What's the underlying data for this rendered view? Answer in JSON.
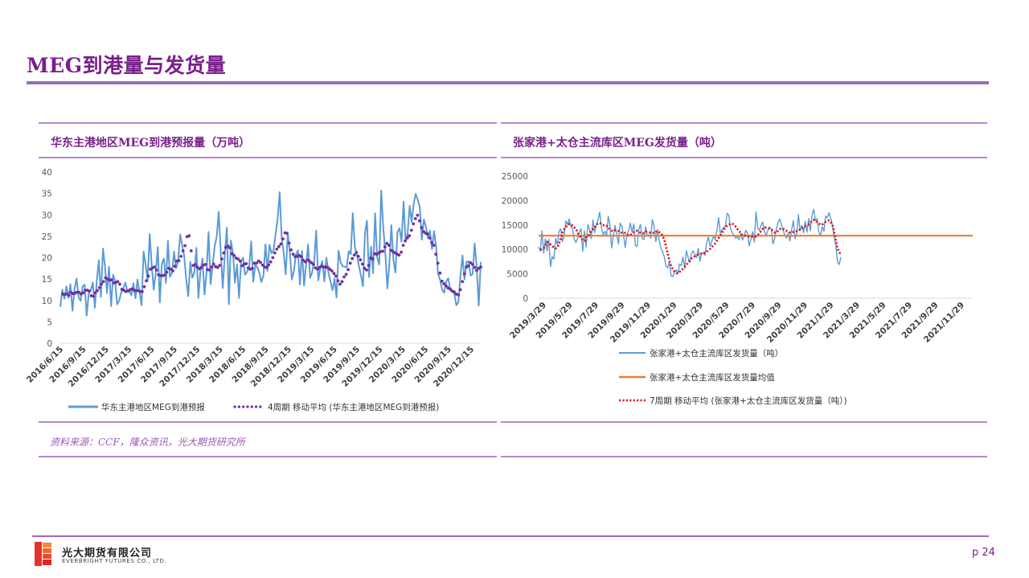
{
  "page": {
    "title": "MEG到港量与发货量",
    "source": "资料来源：CCF，隆众资讯，光大期货研究所",
    "page_number": "p 24",
    "company_cn": "光大期货有限公司",
    "company_en": "EVERBRIGHT FUTURES CO., LTD."
  },
  "colors": {
    "accent": "#7a1f8c",
    "rule": "#9b6ac0",
    "series_blue": "#5b9bd5",
    "series_purple": "#7030a0",
    "series_orange": "#ed7d31",
    "series_red": "#e0141e"
  },
  "chart_data": [
    {
      "type": "line",
      "title": "华东主港地区MEG到港预报量（万吨）",
      "ylim": [
        0,
        40
      ],
      "yticks": [
        "0",
        "5",
        "10",
        "15",
        "20",
        "25",
        "30",
        "35",
        "40"
      ],
      "xticks": [
        "2016/6/15",
        "2016/9/15",
        "2016/12/15",
        "2017/3/15",
        "2017/6/15",
        "2017/9/15",
        "2017/12/15",
        "2018/3/15",
        "2018/6/15",
        "2018/9/15",
        "2018/12/15",
        "2019/3/15",
        "2019/6/15",
        "2019/9/15",
        "2019/12/15",
        "2020/3/15",
        "2020/6/15",
        "2020/9/15",
        "2020/12/15"
      ],
      "series": [
        {
          "name": "华东主港地区MEG到港预报",
          "values": [
            8.5,
            12.5,
            10.4,
            13.3,
            10.6,
            13.8,
            7.6,
            12.7,
            15.1,
            10.8,
            9.9,
            13.3,
            13.7,
            6.5,
            11.7,
            12.3,
            14.2,
            8.3,
            14.9,
            19.4,
            10.8,
            22.1,
            18.0,
            11.7,
            17.9,
            8.7,
            16.0,
            14.6,
            9.1,
            10.0,
            11.9,
            12.8,
            14.2,
            12.2,
            12.2,
            11.2,
            14.0,
            10.5,
            14.9,
            12.0,
            8.9,
            21.4,
            18.5,
            14.5,
            25.5,
            18.2,
            12.5,
            16.4,
            22.5,
            9.5,
            18.6,
            19.8,
            14.1,
            23.9,
            15.5,
            16.5,
            21.4,
            17.5,
            19.2,
            25.4,
            22.9,
            20.4,
            15.0,
            11.0,
            19.0,
            15.3,
            16.5,
            22.3,
            10.6,
            16.7,
            19.8,
            11.4,
            16.5,
            26.0,
            13.8,
            18.2,
            22.6,
            24.8,
            30.7,
            21.4,
            12.9,
            20.9,
            27.0,
            9.1,
            24.0,
            21.0,
            14.1,
            18.4,
            10.6,
            19.1,
            20.0,
            16.0,
            16.7,
            17.9,
            23.8,
            14.4,
            18.3,
            17.7,
            16.5,
            14.3,
            15.8,
            23.1,
            16.9,
            23.0,
            21.0,
            21.8,
            25.5,
            29.0,
            35.3,
            24.5,
            21.2,
            16.1,
            25.7,
            21.3,
            14.9,
            16.9,
            20.7,
            21.7,
            13.7,
            21.6,
            13.5,
            18.3,
            23.1,
            15.3,
            16.6,
            19.1,
            26.3,
            14.7,
            17.5,
            19.2,
            14.4,
            20.0,
            16.6,
            14.5,
            12.4,
            15.1,
            10.7,
            21.6,
            18.9,
            18.0,
            17.9,
            17.7,
            21.5,
            20.8,
            30.4,
            22.6,
            20.7,
            18.1,
            15.9,
            13.3,
            25.7,
            28.6,
            15.5,
            22.6,
            16.4,
            30.4,
            20.1,
            18.4,
            35.7,
            27.2,
            21.1,
            12.8,
            18.4,
            27.6,
            19.4,
            16.5,
            25.9,
            26.9,
            23.7,
            33.1,
            23.9,
            25.6,
            32.1,
            28.3,
            32.6,
            34.9,
            33.5,
            31.8,
            24.2,
            28.9,
            27.3,
            24.5,
            26.3,
            22.0,
            26.2,
            22.8,
            16.3,
            14.8,
            12.5,
            11.8,
            14.4,
            15.2,
            12.3,
            12.2,
            11.5,
            8.9,
            9.6,
            15.6,
            20.5,
            14.9,
            19.0,
            19.2,
            15.8,
            16.2,
            23.3,
            18.0,
            8.8,
            19.0
          ]
        },
        {
          "name": "4周期 移动平均 (华东主港地区MEG到港预报)",
          "values": [
            11.5,
            11.4,
            11.5,
            11.2,
            11.9,
            11.6,
            11.7,
            11.9,
            11.9,
            11.5,
            11.8,
            12.4,
            12.4,
            12.2,
            11.1,
            11.0,
            11.8,
            12.3,
            13.0,
            13.8,
            14.4,
            15.3,
            15.0,
            14.8,
            14.8,
            14.1,
            14.2,
            14.4,
            13.8,
            12.6,
            12.4,
            12.1,
            12.2,
            12.5,
            12.7,
            12.4,
            12.3,
            12.3,
            12.1,
            12.1,
            13.2,
            14.6,
            15.7,
            17.3,
            17.6,
            17.8,
            17.1,
            16.0,
            15.8,
            15.8,
            15.9,
            16.6,
            17.5,
            17.3,
            16.9,
            18.0,
            19.2,
            19.3,
            20.3,
            21.6,
            22.8,
            24.9,
            25.1,
            21.6,
            18.2,
            18.4,
            17.8,
            17.4,
            17.7,
            18.3,
            18.4,
            17.2,
            17.1,
            17.8,
            18.5,
            17.9,
            17.7,
            18.2,
            19.7,
            21.1,
            22.4,
            22.7,
            22.3,
            20.9,
            20.5,
            19.9,
            19.7,
            19.2,
            18.1,
            18.5,
            18.6,
            17.6,
            17.3,
            17.5,
            18.7,
            18.7,
            19.2,
            18.9,
            18.3,
            17.8,
            17.7,
            18.3,
            19.0,
            20.0,
            21.1,
            22.0,
            22.6,
            23.2,
            24.4,
            25.8,
            25.7,
            23.4,
            21.8,
            20.8,
            20.2,
            20.3,
            20.5,
            20.2,
            19.4,
            19.0,
            19.5,
            19.2,
            18.8,
            18.4,
            17.6,
            17.3,
            17.7,
            18.0,
            17.8,
            17.8,
            17.7,
            17.3,
            16.9,
            16.3,
            15.7,
            14.6,
            13.8,
            14.4,
            15.5,
            16.1,
            17.2,
            18.7,
            19.8,
            20.6,
            21.2,
            20.3,
            19.5,
            18.5,
            17.5,
            17.1,
            18.2,
            19.9,
            19.7,
            20.9,
            20.8,
            21.1,
            21.4,
            21.5,
            22.5,
            23.3,
            22.9,
            21.7,
            21.4,
            21.1,
            20.8,
            20.6,
            21.3,
            22.9,
            23.9,
            24.6,
            25.1,
            26.4,
            27.9,
            29.1,
            29.9,
            28.6,
            27.0,
            26.1,
            25.7,
            25.5,
            24.6,
            23.5,
            22.9,
            20.8,
            18.7,
            16.4,
            14.5,
            13.9,
            13.4,
            12.9,
            12.7,
            12.2,
            12.0,
            11.5,
            11.3,
            12.5,
            14.4,
            16.2,
            17.8,
            18.1,
            18.8,
            18.4,
            17.7,
            17.0,
            17.5,
            17.8
          ]
        }
      ]
    },
    {
      "type": "line",
      "title": "张家港+太仓主流库区MEG发货量（吨）",
      "ylim": [
        0,
        25000
      ],
      "yticks": [
        "0",
        "5000",
        "10000",
        "15000",
        "20000",
        "25000"
      ],
      "xticks": [
        "2019/3/29",
        "2019/5/29",
        "2019/7/29",
        "2019/9/29",
        "2019/11/29",
        "2020/1/29",
        "2020/3/29",
        "2020/5/29",
        "2020/7/29",
        "2020/9/29",
        "2020/11/29",
        "2021/1/29",
        "2021/3/29",
        "2021/5/29",
        "2021/7/29",
        "2021/9/29",
        "2021/11/29"
      ],
      "series": [
        {
          "name": "张家港+太仓主流库区发货量（吨）",
          "values": [
            10500,
            9600,
            13800,
            9200,
            12200,
            9700,
            12100,
            6500,
            8500,
            8000,
            12200,
            11000,
            13700,
            14200,
            11600,
            12700,
            15800,
            15100,
            16200,
            14700,
            14200,
            12000,
            11400,
            12300,
            13600,
            14200,
            9600,
            13800,
            10500,
            15100,
            14100,
            12200,
            16000,
            13400,
            15000,
            16000,
            17600,
            14300,
            13000,
            13700,
            12700,
            16800,
            14900,
            10300,
            12700,
            14900,
            13100,
            11100,
            15400,
            14700,
            13000,
            10400,
            13000,
            13800,
            15400,
            13500,
            15200,
            10800,
            10600,
            14100,
            15100,
            12200,
            12000,
            14600,
            12800,
            13000,
            12300,
            16100,
            14700,
            11600,
            14100,
            11900,
            10300,
            9500,
            8500,
            6600,
            6200,
            7500,
            4600,
            4400,
            5300,
            5800,
            5000,
            7000,
            6700,
            8400,
            6100,
            9700,
            8400,
            7300,
            9200,
            9700,
            9000,
            8300,
            10200,
            7600,
            9300,
            9200,
            8800,
            11400,
            12500,
            10600,
            11700,
            12700,
            12000,
            13900,
            16500,
            13300,
            13900,
            14500,
            14800,
            17400,
            17000,
            14300,
            13400,
            12900,
            12300,
            12600,
            12000,
            13200,
            11900,
            12800,
            13900,
            13300,
            10700,
            12000,
            13600,
            11500,
            17700,
            14400,
            13900,
            14900,
            15600,
            13600,
            12900,
            13900,
            14500,
            14200,
            11100,
            12300,
            14100,
            15500,
            16200,
            15000,
            13900,
            12900,
            12300,
            13300,
            11700,
            14000,
            15900,
            12200,
            13200,
            17100,
            13800,
            14900,
            13400,
            15700,
            13500,
            16300,
            13800,
            17000,
            18200,
            15900,
            16300,
            13500,
            12800,
            14600,
            13700,
            16800,
            16500,
            17500,
            16400,
            15000,
            12500,
            10900,
            7400,
            6900,
            8400
          ]
        },
        {
          "name": "张家港+太仓主流库区发货量均值",
          "values": [
            12800,
            12800
          ]
        },
        {
          "name": "7周期 移动平均 (张家港+太仓主流库区发货量（吨）)",
          "values": [
            10000,
            10000,
            10200,
            10700,
            11500,
            11300,
            11000,
            10600,
            10500,
            10200,
            10400,
            11300,
            12300,
            13500,
            14200,
            14600,
            15100,
            15200,
            15000,
            14800,
            14400,
            14000,
            13200,
            12700,
            12100,
            11800,
            11800,
            12700,
            12800,
            13500,
            14000,
            14200,
            14700,
            15200,
            15400,
            15300,
            15100,
            14900,
            14900,
            14700,
            14200,
            13900,
            13700,
            13900,
            13900,
            13800,
            13600,
            13400,
            13500,
            13400,
            13100,
            12900,
            12900,
            13200,
            13500,
            13600,
            13800,
            13600,
            13400,
            13300,
            13300,
            13600,
            13600,
            13500,
            13400,
            13400,
            13300,
            13600,
            13700,
            13500,
            13300,
            12700,
            11700,
            10200,
            8800,
            7300,
            6400,
            5800,
            5300,
            5100,
            5200,
            5500,
            5800,
            6200,
            6600,
            7000,
            7500,
            8000,
            8300,
            8500,
            8700,
            8900,
            9000,
            9100,
            9300,
            9300,
            9500,
            9700,
            10000,
            10300,
            10700,
            11100,
            11600,
            12200,
            12700,
            13300,
            13900,
            14400,
            14800,
            15000,
            15200,
            15300,
            15100,
            14700,
            14200,
            13800,
            13300,
            12900,
            12800,
            12800,
            12700,
            12600,
            12600,
            12600,
            12500,
            12700,
            13000,
            13400,
            13800,
            14300,
            14500,
            14400,
            14400,
            14200,
            14000,
            13600,
            13400,
            13500,
            13900,
            14200,
            14300,
            14100,
            13900,
            13700,
            13500,
            13400,
            13500,
            13600,
            13700,
            13700,
            14000,
            14200,
            14400,
            14600,
            14800,
            15000,
            15300,
            15700,
            16000,
            16000,
            15700,
            15400,
            15100,
            15000,
            15300,
            15600,
            15800,
            15900,
            15700,
            15100,
            13800,
            11900,
            10300,
            9400,
            9000
          ]
        }
      ]
    }
  ]
}
